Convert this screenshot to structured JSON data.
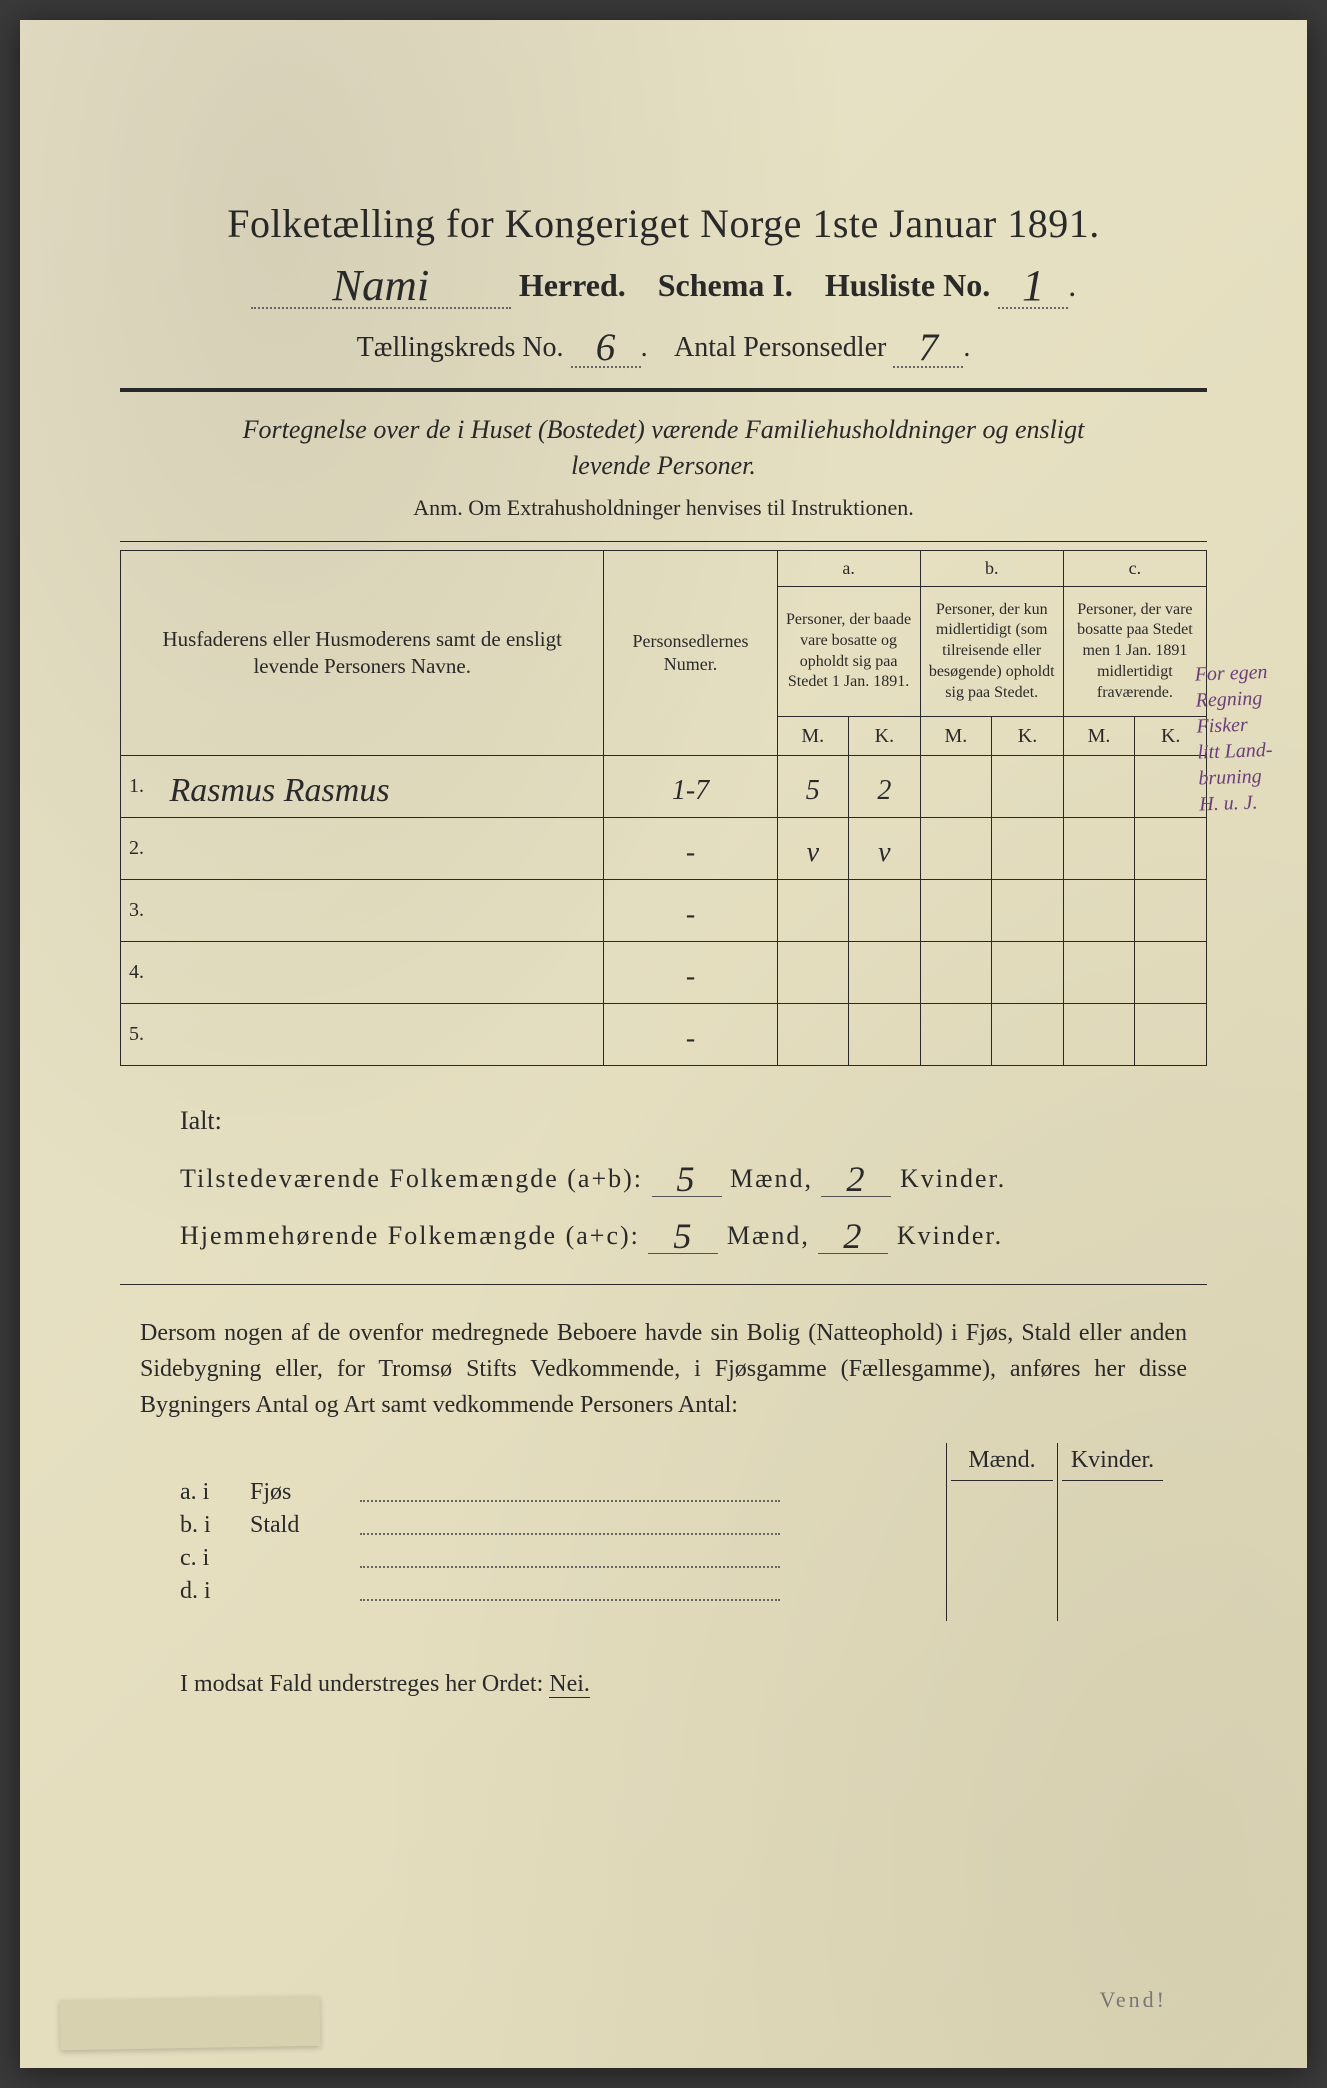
{
  "document": {
    "background_color": "#e5dfc0",
    "text_color": "#2a2a2a",
    "handwriting_color": "#2a2a2a",
    "margin_note_color": "#6b3e7a"
  },
  "header": {
    "title": "Folketælling for Kongeriget Norge 1ste Januar 1891.",
    "herred_value": "Nami",
    "herred_label": "Herred.",
    "schema_label": "Schema I.",
    "husliste_label": "Husliste No.",
    "husliste_value": "1",
    "kreds_label": "Tællingskreds No.",
    "kreds_value": "6",
    "personsedler_label": "Antal Personsedler",
    "personsedler_value": "7"
  },
  "subtitle": {
    "line1": "Fortegnelse over de i Huset (Bostedet) værende Familiehusholdninger og ensligt",
    "line2": "levende Personer.",
    "anm": "Anm. Om Extrahusholdninger henvises til Instruktionen."
  },
  "table": {
    "col1_header": "Husfaderens eller Husmoderens samt de ensligt levende Personers Navne.",
    "col2_header": "Personsedlernes Numer.",
    "col_a_label": "a.",
    "col_a_header": "Personer, der baade vare bosatte og opholdt sig paa Stedet 1 Jan. 1891.",
    "col_b_label": "b.",
    "col_b_header": "Personer, der kun midlertidigt (som tilreisende eller besøgende) opholdt sig paa Stedet.",
    "col_c_label": "c.",
    "col_c_header": "Personer, der vare bosatte paa Stedet men 1 Jan. 1891 midlertidigt fraværende.",
    "m_label": "M.",
    "k_label": "K.",
    "rows": [
      {
        "num": "1.",
        "name": "Rasmus Rasmus",
        "sedler": "1-7",
        "a_m": "5",
        "a_k": "2",
        "b_m": "",
        "b_k": "",
        "c_m": "",
        "c_k": ""
      },
      {
        "num": "2.",
        "name": "",
        "sedler": "-",
        "a_m": "v",
        "a_k": "v",
        "b_m": "",
        "b_k": "",
        "c_m": "",
        "c_k": ""
      },
      {
        "num": "3.",
        "name": "",
        "sedler": "-",
        "a_m": "",
        "a_k": "",
        "b_m": "",
        "b_k": "",
        "c_m": "",
        "c_k": ""
      },
      {
        "num": "4.",
        "name": "",
        "sedler": "-",
        "a_m": "",
        "a_k": "",
        "b_m": "",
        "b_k": "",
        "c_m": "",
        "c_k": ""
      },
      {
        "num": "5.",
        "name": "",
        "sedler": "-",
        "a_m": "",
        "a_k": "",
        "b_m": "",
        "b_k": "",
        "c_m": "",
        "c_k": ""
      }
    ]
  },
  "margin_note": "For egen\nRegning\nFisker\nlitt Land-\nbruning\nH. u. J.",
  "totals": {
    "ialt": "Ialt:",
    "line1_label": "Tilstedeværende Folkemængde (a+b):",
    "line1_m": "5",
    "line1_k": "2",
    "line2_label": "Hjemmehørende Folkemængde (a+c):",
    "line2_m": "5",
    "line2_k": "2",
    "maend": "Mænd,",
    "kvinder": "Kvinder."
  },
  "paragraph": "Dersom nogen af de ovenfor medregnede Beboere havde sin Bolig (Natteophold) i Fjøs, Stald eller anden Sidebygning eller, for Tromsø Stifts Vedkommende, i Fjøsgamme (Fællesgamme), anføres her disse Bygningers Antal og Art samt vedkommende Personers Antal:",
  "side_table": {
    "maend": "Mænd.",
    "kvinder": "Kvinder.",
    "rows": [
      {
        "label": "a.  i",
        "name": "Fjøs"
      },
      {
        "label": "b.  i",
        "name": "Stald"
      },
      {
        "label": "c.  i",
        "name": ""
      },
      {
        "label": "d.  i",
        "name": ""
      }
    ]
  },
  "footer": {
    "text": "I modsat Fald understreges her Ordet:",
    "nei": "Nei.",
    "vend": "Vend!"
  }
}
